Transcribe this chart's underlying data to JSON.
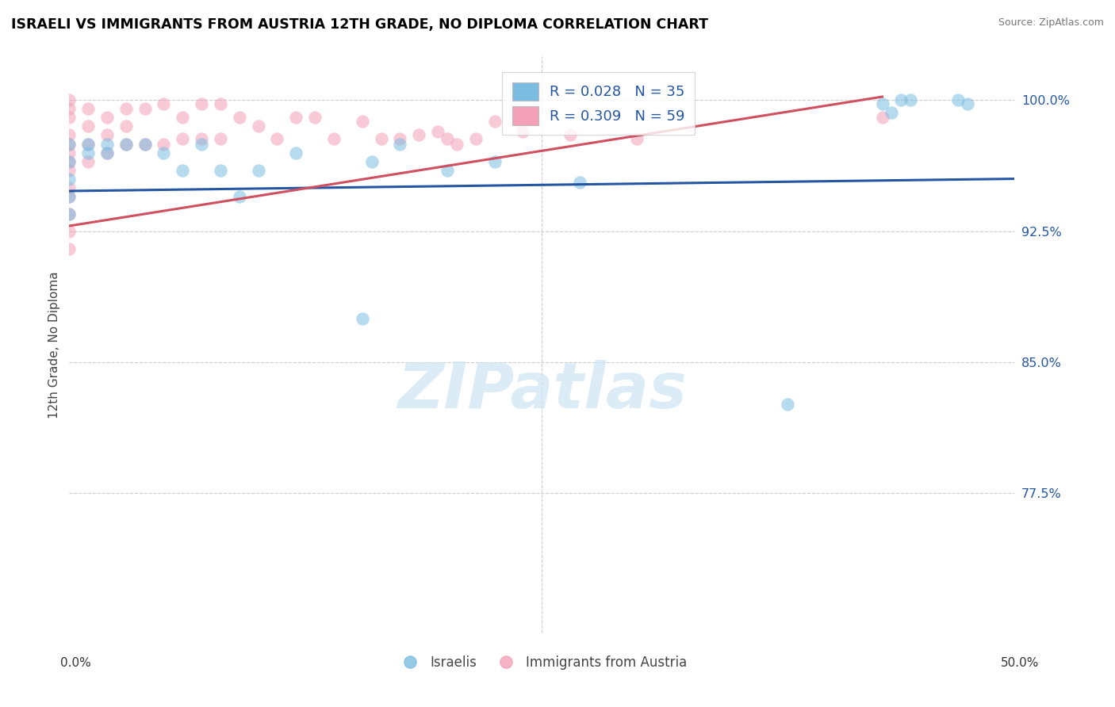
{
  "title": "ISRAELI VS IMMIGRANTS FROM AUSTRIA 12TH GRADE, NO DIPLOMA CORRELATION CHART",
  "source": "Source: ZipAtlas.com",
  "ylabel": "12th Grade, No Diploma",
  "ylim": [
    0.695,
    1.025
  ],
  "xlim": [
    0.0,
    0.5
  ],
  "ytick_vals": [
    1.0,
    0.925,
    0.85,
    0.775
  ],
  "ytick_labels": [
    "100.0%",
    "92.5%",
    "85.0%",
    "77.5%"
  ],
  "xtick_vals": [
    0.0,
    0.5
  ],
  "xtick_labels": [
    "0.0%",
    "50.0%"
  ],
  "grid_color": "#cccccc",
  "watermark_text": "ZIPatlas",
  "blue_color": "#7bbde0",
  "pink_color": "#f4a0b8",
  "blue_line_color": "#2456a4",
  "pink_line_color": "#d05060",
  "israelis_label": "Israelis",
  "austria_label": "Immigrants from Austria",
  "blue_scatter_x": [
    0.0,
    0.0,
    0.0,
    0.0,
    0.0,
    0.01,
    0.01,
    0.02,
    0.02,
    0.03,
    0.04,
    0.05,
    0.06,
    0.07,
    0.08,
    0.09,
    0.1,
    0.12,
    0.155,
    0.16,
    0.175,
    0.2,
    0.225,
    0.27,
    0.38,
    0.43,
    0.435,
    0.44,
    0.445,
    0.47,
    0.475
  ],
  "blue_scatter_y": [
    0.975,
    0.965,
    0.955,
    0.945,
    0.935,
    0.975,
    0.97,
    0.975,
    0.97,
    0.975,
    0.975,
    0.97,
    0.96,
    0.975,
    0.96,
    0.945,
    0.96,
    0.97,
    0.875,
    0.965,
    0.975,
    0.96,
    0.965,
    0.953,
    0.826,
    0.998,
    0.993,
    1.0,
    1.0,
    1.0,
    0.998
  ],
  "pink_scatter_x": [
    0.0,
    0.0,
    0.0,
    0.0,
    0.0,
    0.0,
    0.0,
    0.0,
    0.0,
    0.0,
    0.0,
    0.0,
    0.0,
    0.01,
    0.01,
    0.01,
    0.01,
    0.02,
    0.02,
    0.02,
    0.03,
    0.03,
    0.03,
    0.04,
    0.04,
    0.05,
    0.05,
    0.06,
    0.06,
    0.07,
    0.07,
    0.08,
    0.08,
    0.09,
    0.1,
    0.11,
    0.12,
    0.13,
    0.14,
    0.155,
    0.165,
    0.175,
    0.185,
    0.195,
    0.2,
    0.205,
    0.215,
    0.225,
    0.24,
    0.265,
    0.3,
    0.43
  ],
  "pink_scatter_y": [
    1.0,
    0.995,
    0.99,
    0.98,
    0.975,
    0.97,
    0.965,
    0.96,
    0.95,
    0.945,
    0.935,
    0.925,
    0.915,
    0.995,
    0.985,
    0.975,
    0.965,
    0.99,
    0.98,
    0.97,
    0.995,
    0.985,
    0.975,
    0.995,
    0.975,
    0.998,
    0.975,
    0.99,
    0.978,
    0.998,
    0.978,
    0.998,
    0.978,
    0.99,
    0.985,
    0.978,
    0.99,
    0.99,
    0.978,
    0.988,
    0.978,
    0.978,
    0.98,
    0.982,
    0.978,
    0.975,
    0.978,
    0.988,
    0.982,
    0.98,
    0.978,
    0.99
  ],
  "blue_trend_x": [
    0.0,
    0.5
  ],
  "blue_trend_y": [
    0.948,
    0.955
  ],
  "pink_trend_x": [
    0.0,
    0.43
  ],
  "pink_trend_y": [
    0.928,
    1.002
  ]
}
